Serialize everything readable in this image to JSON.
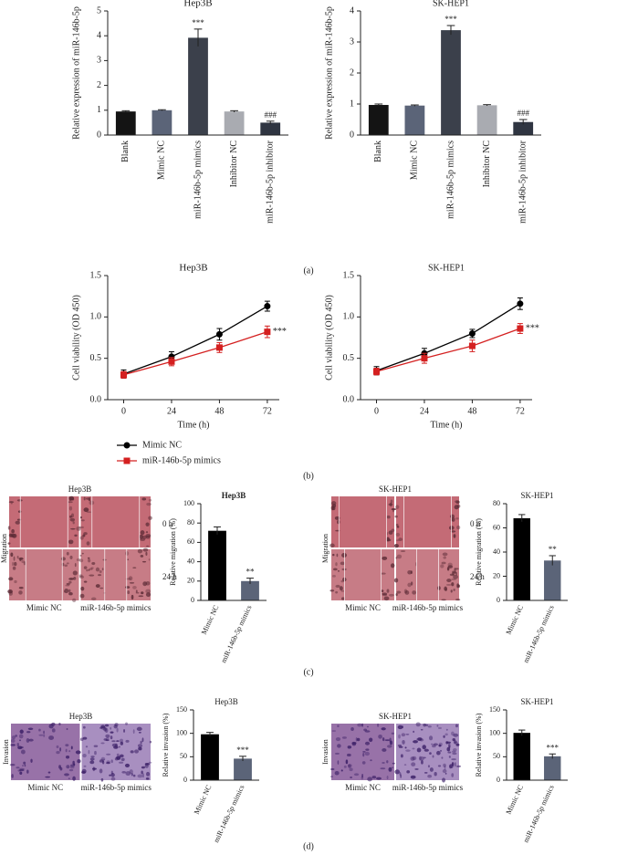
{
  "chart_data": [
    {
      "type": "bar",
      "title": "Hep3B",
      "ylabel": "Relative expression of miR-146b-5p",
      "categories": [
        "Blank",
        "Mimic NC",
        "miR-146b-5p mimics",
        "Inhibitor NC",
        "miR-146b-5p inhibitor"
      ],
      "values": [
        0.95,
        1.0,
        3.92,
        0.95,
        0.5
      ],
      "errors": [
        0.03,
        0.02,
        0.35,
        0.03,
        0.06
      ],
      "colors": [
        "#141414",
        "#5b6478",
        "#3b404b",
        "#a9abb1",
        "#2f3541"
      ],
      "annotations": [
        null,
        null,
        "***",
        null,
        "###"
      ],
      "ylim": [
        0,
        5
      ],
      "yticks": [
        0,
        1,
        2,
        3,
        4,
        5
      ]
    },
    {
      "type": "bar",
      "title": "SK-HEP1",
      "ylabel": "Relative expression of miR-146b-5p",
      "categories": [
        "Blank",
        "Mimic NC",
        "miR-146b-5p mimics",
        "Inhibitor NC",
        "miR-146b-5p inhibitor"
      ],
      "values": [
        0.97,
        0.95,
        3.38,
        0.96,
        0.42
      ],
      "errors": [
        0.03,
        0.02,
        0.15,
        0.02,
        0.08
      ],
      "colors": [
        "#141414",
        "#5b6478",
        "#3b404b",
        "#a9abb1",
        "#2f3541"
      ],
      "annotations": [
        null,
        null,
        "***",
        null,
        "###"
      ],
      "ylim": [
        0,
        4
      ],
      "yticks": [
        0,
        1,
        2,
        3,
        4
      ]
    },
    {
      "type": "line",
      "title": "Hep3B",
      "xlabel": "Time (h)",
      "ylabel": "Cell viability (OD 450)",
      "x": [
        0,
        24,
        48,
        72
      ],
      "xlim": [
        -8,
        78
      ],
      "xticks": [
        0,
        24,
        48,
        72
      ],
      "ylim": [
        0,
        1.5
      ],
      "yticks": [
        {
          "value": 0,
          "label": "0.0"
        },
        0.5,
        {
          "value": 1,
          "label": "1.0"
        },
        1.5
      ],
      "series": [
        {
          "name": "Mimic NC",
          "color": "#000000",
          "marker": "circle",
          "values": [
            0.31,
            0.52,
            0.79,
            1.13
          ],
          "errors": [
            0.05,
            0.06,
            0.07,
            0.06
          ]
        },
        {
          "name": "miR-146b-5p mimics",
          "color": "#d42020",
          "marker": "square",
          "values": [
            0.3,
            0.46,
            0.63,
            0.82
          ],
          "errors": [
            0.04,
            0.05,
            0.06,
            0.07
          ]
        }
      ],
      "annotation": "***",
      "legend": true
    },
    {
      "type": "line",
      "title": "SK-HEP1",
      "xlabel": "Time (h)",
      "ylabel": "Cell viability (OD 450)",
      "x": [
        0,
        24,
        48,
        72
      ],
      "xlim": [
        -8,
        78
      ],
      "xticks": [
        0,
        24,
        48,
        72
      ],
      "ylim": [
        0,
        1.5
      ],
      "yticks": [
        {
          "value": 0,
          "label": "0.0"
        },
        0.5,
        {
          "value": 1,
          "label": "1.0"
        },
        1.5
      ],
      "series": [
        {
          "name": "Mimic NC",
          "color": "#000000",
          "marker": "circle",
          "values": [
            0.35,
            0.56,
            0.8,
            1.16
          ],
          "errors": [
            0.05,
            0.06,
            0.05,
            0.07
          ]
        },
        {
          "name": "miR-146b-5p mimics",
          "color": "#d42020",
          "marker": "square",
          "values": [
            0.34,
            0.5,
            0.65,
            0.86
          ],
          "errors": [
            0.04,
            0.06,
            0.07,
            0.06
          ]
        }
      ],
      "annotation": "***"
    },
    {
      "type": "bar",
      "title": "Hep3B",
      "ylabel": "Relative migration (%)",
      "categories": [
        "Mimic NC",
        "miR-146b-5p mimics"
      ],
      "values": [
        72,
        20
      ],
      "errors": [
        4,
        3
      ],
      "colors": [
        "#000000",
        "#5b6478"
      ],
      "annotations": [
        null,
        "**"
      ],
      "ylim": [
        0,
        100
      ],
      "yticks": [
        0,
        20,
        40,
        60,
        80,
        100
      ]
    },
    {
      "type": "bar",
      "title": "SK-HEP1",
      "ylabel": "Relative migration (%)",
      "categories": [
        "Mimic NC",
        "miR-146b-5p mimics"
      ],
      "values": [
        68,
        33
      ],
      "errors": [
        3,
        4
      ],
      "colors": [
        "#000000",
        "#5b6478"
      ],
      "annotations": [
        null,
        "**"
      ],
      "ylim": [
        0,
        80
      ],
      "yticks": [
        0,
        20,
        40,
        60,
        80
      ]
    },
    {
      "type": "bar",
      "title": "Hep3B",
      "ylabel": "Relative invasion (%)",
      "categories": [
        "Mimic NC",
        "miR-146b-5p mimics"
      ],
      "values": [
        98,
        46
      ],
      "errors": [
        4,
        5
      ],
      "colors": [
        "#000000",
        "#5b6478"
      ],
      "annotations": [
        null,
        "***"
      ],
      "ylim": [
        0,
        150
      ],
      "yticks": [
        0,
        50,
        100,
        150
      ]
    },
    {
      "type": "bar",
      "title": "SK-HEP1",
      "ylabel": "Relative invasion (%)",
      "categories": [
        "Mimic NC",
        "miR-146b-5p mimics"
      ],
      "values": [
        101,
        51
      ],
      "errors": [
        6,
        5
      ],
      "colors": [
        "#000000",
        "#5b6478"
      ],
      "annotations": [
        null,
        "***"
      ],
      "ylim": [
        0,
        150
      ],
      "yticks": [
        0,
        50,
        100,
        150
      ]
    }
  ],
  "images": [
    {
      "title": "Hep3B",
      "side_label": "Migration",
      "rows": [
        "0 h",
        "24 h"
      ],
      "columns": [
        "Mimic NC",
        "miR-146b-5p mimics"
      ]
    },
    {
      "title": "SK-HEP1",
      "side_label": "Migration",
      "rows": [
        "0 h",
        "24 h"
      ],
      "columns": [
        "Mimic NC",
        "miR-146b-5p mimics"
      ]
    },
    {
      "title": "Hep3B",
      "side_label": "Invasion",
      "columns": [
        "Mimic NC",
        "miR-146b-5p mimics"
      ]
    },
    {
      "title": "SK-HEP1",
      "side_label": "Invasion",
      "columns": [
        "Mimic NC",
        "miR-146b-5p mimics"
      ]
    }
  ],
  "panels": [
    "(a)",
    "(b)",
    "(c)",
    "(d)"
  ]
}
